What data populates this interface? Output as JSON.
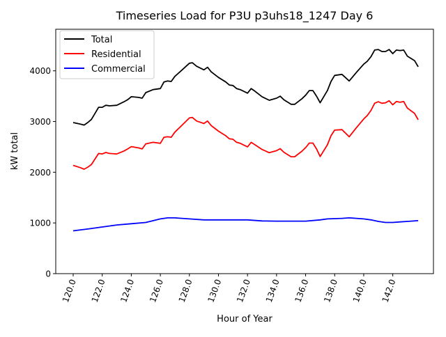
{
  "chart_data": {
    "type": "line",
    "title": "Timeseries Load for P3U p3uhs18_1247  Day 6",
    "xlabel": "Hour of Year",
    "ylabel": "kW total",
    "xlim": [
      118.8,
      144.8
    ],
    "ylim": [
      0,
      4820
    ],
    "xticks": [
      120,
      122,
      124,
      126,
      128,
      130,
      132,
      134,
      136,
      138,
      140,
      142
    ],
    "xtick_labels": [
      "120.0",
      "122.0",
      "124.0",
      "126.0",
      "128.0",
      "130.0",
      "132.0",
      "134.0",
      "136.0",
      "138.0",
      "140.0",
      "142.0"
    ],
    "yticks": [
      0,
      1000,
      2000,
      3000,
      4000
    ],
    "ytick_labels": [
      "0",
      "1000",
      "2000",
      "3000",
      "4000"
    ],
    "grid": false,
    "legend_position": "top-left",
    "series": [
      {
        "name": "Total",
        "color": "#000000",
        "x": [
          120,
          120.5,
          120.75,
          121,
          121.25,
          121.5,
          121.75,
          122,
          122.25,
          122.5,
          123,
          123.5,
          123.75,
          124,
          124.5,
          124.75,
          125,
          125.5,
          126,
          126.25,
          126.5,
          126.75,
          127,
          127.5,
          128,
          128.2,
          128.5,
          129,
          129.25,
          129.5,
          130,
          130.5,
          130.75,
          131,
          131.25,
          131.5,
          132,
          132.25,
          132.5,
          133,
          133.5,
          134,
          134.25,
          134.5,
          135,
          135.25,
          135.75,
          136,
          136.25,
          136.5,
          136.75,
          137,
          137.5,
          137.75,
          138,
          138.5,
          139,
          139.5,
          140,
          140.25,
          140.5,
          140.75,
          141,
          141.25,
          141.5,
          141.75,
          142,
          142.25,
          142.5,
          142.75,
          143,
          143.5,
          143.75
        ],
        "y": [
          2980,
          2950,
          2930,
          2980,
          3040,
          3160,
          3280,
          3280,
          3320,
          3310,
          3320,
          3390,
          3430,
          3490,
          3475,
          3460,
          3570,
          3630,
          3650,
          3780,
          3800,
          3790,
          3890,
          4020,
          4150,
          4160,
          4090,
          4020,
          4070,
          3980,
          3870,
          3780,
          3720,
          3710,
          3650,
          3630,
          3560,
          3650,
          3600,
          3490,
          3420,
          3460,
          3500,
          3430,
          3340,
          3340,
          3450,
          3520,
          3610,
          3610,
          3500,
          3370,
          3610,
          3790,
          3910,
          3930,
          3800,
          3970,
          4130,
          4190,
          4280,
          4410,
          4420,
          4380,
          4380,
          4420,
          4340,
          4410,
          4400,
          4410,
          4290,
          4200,
          4080
        ]
      },
      {
        "name": "Residential",
        "color": "#ff0000",
        "x": [
          120,
          120.5,
          120.75,
          121,
          121.25,
          121.5,
          121.75,
          122,
          122.25,
          122.5,
          123,
          123.5,
          123.75,
          124,
          124.5,
          124.75,
          125,
          125.5,
          126,
          126.25,
          126.5,
          126.75,
          127,
          127.5,
          128,
          128.2,
          128.5,
          129,
          129.25,
          129.5,
          130,
          130.5,
          130.75,
          131,
          131.25,
          131.5,
          132,
          132.25,
          132.5,
          133,
          133.5,
          134,
          134.25,
          134.5,
          135,
          135.25,
          135.75,
          136,
          136.25,
          136.5,
          136.75,
          137,
          137.5,
          137.75,
          138,
          138.5,
          139,
          139.5,
          140,
          140.25,
          140.5,
          140.75,
          141,
          141.25,
          141.5,
          141.75,
          142,
          142.25,
          142.5,
          142.75,
          143,
          143.5,
          143.75
        ],
        "y": [
          2135,
          2090,
          2060,
          2100,
          2150,
          2260,
          2370,
          2360,
          2390,
          2370,
          2360,
          2420,
          2460,
          2505,
          2480,
          2460,
          2560,
          2590,
          2570,
          2690,
          2700,
          2690,
          2790,
          2930,
          3070,
          3080,
          3010,
          2960,
          3010,
          2920,
          2810,
          2720,
          2660,
          2650,
          2590,
          2570,
          2500,
          2590,
          2545,
          2450,
          2385,
          2425,
          2465,
          2395,
          2305,
          2305,
          2415,
          2485,
          2575,
          2575,
          2460,
          2310,
          2540,
          2720,
          2830,
          2840,
          2700,
          2880,
          3050,
          3120,
          3220,
          3360,
          3390,
          3360,
          3370,
          3410,
          3330,
          3395,
          3380,
          3395,
          3265,
          3160,
          3035
        ]
      },
      {
        "name": "Commercial",
        "color": "#0000ff",
        "x": [
          120,
          121,
          122,
          123,
          124,
          125,
          126,
          126.5,
          127,
          128,
          129,
          130,
          132,
          133,
          134,
          136,
          137,
          137.5,
          138.5,
          139,
          139.5,
          140,
          140.5,
          141,
          141.5,
          142,
          142.5,
          143,
          143.75
        ],
        "y": [
          845,
          880,
          920,
          960,
          985,
          1010,
          1080,
          1100,
          1100,
          1080,
          1060,
          1060,
          1060,
          1040,
          1035,
          1035,
          1060,
          1080,
          1090,
          1100,
          1090,
          1080,
          1060,
          1030,
          1010,
          1010,
          1020,
          1030,
          1045
        ]
      }
    ]
  }
}
